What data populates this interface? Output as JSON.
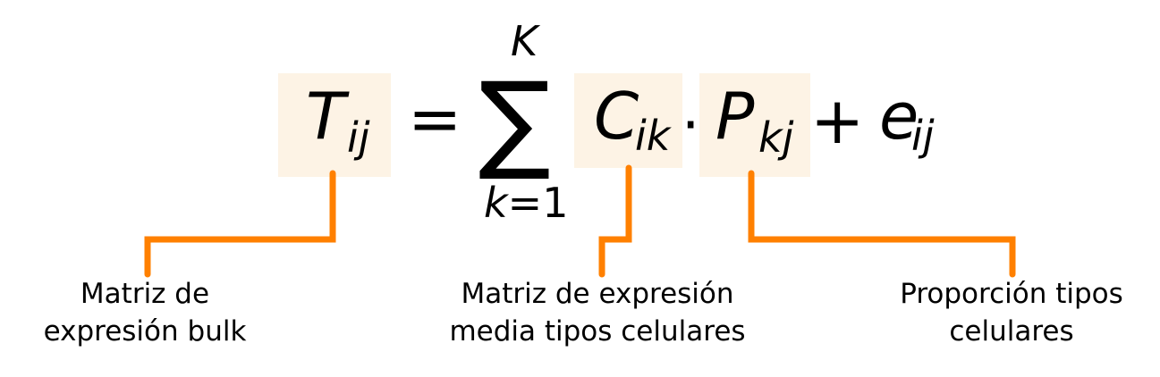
{
  "colors": {
    "highlight": "#fdf3e5",
    "connector": "#ff8000",
    "text": "#000000"
  },
  "equation": {
    "t_symbol": "T",
    "t_subscript": "ij",
    "equals_sign": "=",
    "sum_symbol": "∑",
    "sum_upper": "K",
    "sum_lower_var": "k",
    "sum_lower_eq": "=",
    "sum_lower_num": "1",
    "c_symbol": "C",
    "c_subscript": "ik",
    "dot_operator": "·",
    "p_symbol": "P",
    "p_subscript": "kj",
    "plus_sign": "+",
    "e_symbol": "e",
    "e_subscript": "ij"
  },
  "labels": {
    "bulk_line1": "Matriz de",
    "bulk_line2": "expresión bulk",
    "mean_line1": "Matriz de expresión",
    "mean_line2": "media tipos celulares",
    "prop_line1": "Proporción tipos",
    "prop_line2": "celulares"
  }
}
